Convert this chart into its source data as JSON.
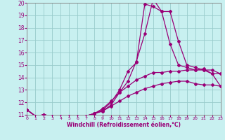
{
  "xlabel": "Windchill (Refroidissement éolien,°C)",
  "bg_color": "#c8f0f0",
  "line_color": "#990077",
  "grid_color": "#99cccc",
  "xlim": [
    0,
    23
  ],
  "ylim": [
    11,
    20
  ],
  "xticks": [
    0,
    1,
    2,
    3,
    4,
    5,
    6,
    7,
    8,
    9,
    10,
    11,
    12,
    13,
    14,
    15,
    16,
    17,
    18,
    19,
    20,
    21,
    22,
    23
  ],
  "yticks": [
    11,
    12,
    13,
    14,
    15,
    16,
    17,
    18,
    19,
    20
  ],
  "lines": [
    {
      "x": [
        0,
        1,
        2,
        3,
        4,
        5,
        6,
        7,
        8,
        9,
        10,
        11,
        12,
        13,
        14,
        15,
        16,
        17,
        18,
        19,
        20,
        21,
        22,
        23
      ],
      "y": [
        11.4,
        10.9,
        11.0,
        10.9,
        10.9,
        10.9,
        10.9,
        10.9,
        11.1,
        11.3,
        11.8,
        12.8,
        13.7,
        15.3,
        17.5,
        20.3,
        19.3,
        19.3,
        16.9,
        15.0,
        14.8,
        14.6,
        14.6,
        14.3
      ]
    },
    {
      "x": [
        0,
        1,
        2,
        3,
        4,
        5,
        6,
        7,
        8,
        9,
        10,
        11,
        12,
        13,
        14,
        15,
        16,
        17,
        18,
        19,
        20,
        21,
        22,
        23
      ],
      "y": [
        11.4,
        10.9,
        11.0,
        10.9,
        10.9,
        10.9,
        10.9,
        10.9,
        11.1,
        11.4,
        12.0,
        13.0,
        14.5,
        15.2,
        19.9,
        19.7,
        19.3,
        16.7,
        15.0,
        14.8,
        14.6,
        14.6,
        14.3,
        14.3
      ]
    },
    {
      "x": [
        0,
        1,
        2,
        3,
        4,
        5,
        6,
        7,
        8,
        9,
        10,
        11,
        12,
        13,
        14,
        15,
        16,
        17,
        18,
        19,
        20,
        21,
        22,
        23
      ],
      "y": [
        11.4,
        10.9,
        11.0,
        10.9,
        10.9,
        10.9,
        10.9,
        10.9,
        11.1,
        11.5,
        12.1,
        12.8,
        13.3,
        13.8,
        14.1,
        14.4,
        14.4,
        14.5,
        14.5,
        14.6,
        14.6,
        14.7,
        14.3,
        13.3
      ]
    },
    {
      "x": [
        0,
        1,
        2,
        3,
        4,
        5,
        6,
        7,
        8,
        9,
        10,
        11,
        12,
        13,
        14,
        15,
        16,
        17,
        18,
        19,
        20,
        21,
        22,
        23
      ],
      "y": [
        11.4,
        10.9,
        11.0,
        10.9,
        10.9,
        10.9,
        10.9,
        10.9,
        11.1,
        11.3,
        11.7,
        12.1,
        12.5,
        12.8,
        13.1,
        13.3,
        13.5,
        13.6,
        13.7,
        13.7,
        13.5,
        13.4,
        13.4,
        13.3
      ]
    }
  ]
}
